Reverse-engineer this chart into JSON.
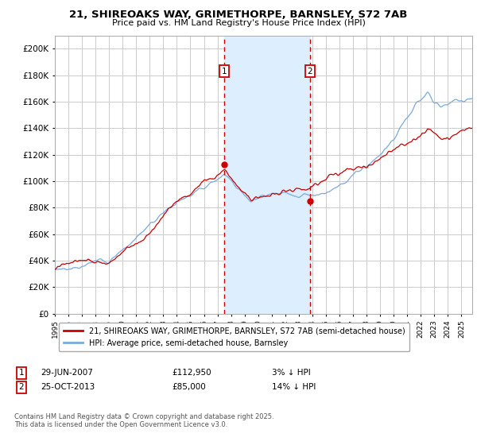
{
  "title": "21, SHIREOAKS WAY, GRIMETHORPE, BARNSLEY, S72 7AB",
  "subtitle": "Price paid vs. HM Land Registry's House Price Index (HPI)",
  "ylabel_ticks": [
    0,
    20000,
    40000,
    60000,
    80000,
    100000,
    120000,
    140000,
    160000,
    180000,
    200000
  ],
  "ylim": [
    0,
    210000
  ],
  "xlim_start": 1995.0,
  "xlim_end": 2025.8,
  "sale1_date": 2007.49,
  "sale1_price": 112950,
  "sale2_date": 2013.81,
  "sale2_price": 85000,
  "legend_line1": "21, SHIREOAKS WAY, GRIMETHORPE, BARNSLEY, S72 7AB (semi-detached house)",
  "legend_line2": "HPI: Average price, semi-detached house, Barnsley",
  "annotation1_date": "29-JUN-2007",
  "annotation1_price": "£112,950",
  "annotation1_hpi": "3% ↓ HPI",
  "annotation2_date": "25-OCT-2013",
  "annotation2_price": "£85,000",
  "annotation2_hpi": "14% ↓ HPI",
  "footer": "Contains HM Land Registry data © Crown copyright and database right 2025.\nThis data is licensed under the Open Government Licence v3.0.",
  "color_red": "#cc0000",
  "color_blue": "#7aaadd",
  "color_shade": "#ddeeff",
  "background_color": "#ffffff",
  "grid_color": "#cccccc"
}
